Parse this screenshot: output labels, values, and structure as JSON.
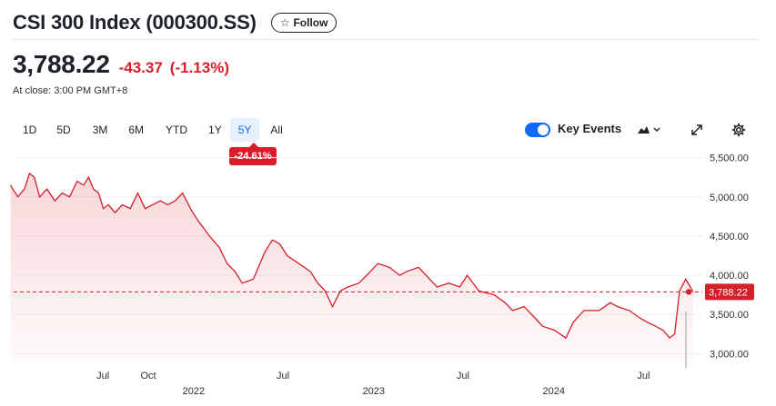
{
  "header": {
    "title": "CSI 300 Index (000300.SS)",
    "follow_label": "Follow"
  },
  "quote": {
    "price": "3,788.22",
    "change": "-43.37",
    "change_percent": "(-1.13%)",
    "close_note": "At close: 3:00 PM GMT+8"
  },
  "ranges": [
    "1D",
    "5D",
    "3M",
    "6M",
    "YTD",
    "1Y",
    "5Y",
    "All"
  ],
  "active_range": "5Y",
  "period_performance": "-24.61%",
  "toolbar": {
    "key_events_label": "Key Events",
    "key_events_enabled": true,
    "icons": [
      "mountain-chart-icon",
      "chevron-down-icon",
      "expand-icon",
      "gear-icon"
    ]
  },
  "colors": {
    "line": "#d61f2b",
    "negative": "#d61f2b",
    "accent": "#0f69ff"
  },
  "chart_data": {
    "type": "area",
    "ylim": [
      2900,
      5600
    ],
    "yticks": [
      3000,
      3500,
      4000,
      4500,
      5000,
      5500
    ],
    "ytick_labels": [
      "3,000.00",
      "3,500.00",
      "4,000.00",
      "4,500.00",
      "5,000.00",
      "5,500.00"
    ],
    "xticks": [
      {
        "label": "Jul",
        "date": "2021-07"
      },
      {
        "label": "Oct",
        "date": "2021-10"
      },
      {
        "label": "2022",
        "date": "2022-01"
      },
      {
        "label": "Jul",
        "date": "2022-07"
      },
      {
        "label": "2023",
        "date": "2023-01"
      },
      {
        "label": "Jul",
        "date": "2023-07"
      },
      {
        "label": "2024",
        "date": "2024-01"
      },
      {
        "label": "Jul",
        "date": "2024-07"
      }
    ],
    "last_price": 3788.22,
    "last_price_label": "3,788.22",
    "series": [
      {
        "values": [
          [
            "2021-01",
            5150
          ],
          [
            "2021-01",
            5000
          ],
          [
            "2021-02",
            5100
          ],
          [
            "2021-02",
            5300
          ],
          [
            "2021-02",
            5250
          ],
          [
            "2021-03",
            5000
          ],
          [
            "2021-03",
            5100
          ],
          [
            "2021-04",
            4950
          ],
          [
            "2021-04",
            5050
          ],
          [
            "2021-05",
            5000
          ],
          [
            "2021-05",
            5200
          ],
          [
            "2021-06",
            5150
          ],
          [
            "2021-06",
            5250
          ],
          [
            "2021-06",
            5100
          ],
          [
            "2021-07",
            5050
          ],
          [
            "2021-07",
            4850
          ],
          [
            "2021-07",
            4900
          ],
          [
            "2021-08",
            4800
          ],
          [
            "2021-08",
            4900
          ],
          [
            "2021-09",
            4850
          ],
          [
            "2021-09",
            5050
          ],
          [
            "2021-10",
            4850
          ],
          [
            "2021-10",
            4900
          ],
          [
            "2021-11",
            4950
          ],
          [
            "2021-11",
            4900
          ],
          [
            "2021-12",
            4950
          ],
          [
            "2021-12",
            5050
          ],
          [
            "2022-01",
            4850
          ],
          [
            "2022-01",
            4700
          ],
          [
            "2022-02",
            4500
          ],
          [
            "2022-03",
            4350
          ],
          [
            "2022-03",
            4150
          ],
          [
            "2022-04",
            4050
          ],
          [
            "2022-04",
            3900
          ],
          [
            "2022-05",
            3950
          ],
          [
            "2022-06",
            4300
          ],
          [
            "2022-06",
            4450
          ],
          [
            "2022-07",
            4400
          ],
          [
            "2022-07",
            4250
          ],
          [
            "2022-08",
            4150
          ],
          [
            "2022-09",
            4050
          ],
          [
            "2022-09",
            3900
          ],
          [
            "2022-10",
            3800
          ],
          [
            "2022-10",
            3600
          ],
          [
            "2022-11",
            3800
          ],
          [
            "2022-11",
            3850
          ],
          [
            "2022-12",
            3900
          ],
          [
            "2023-01",
            4050
          ],
          [
            "2023-01",
            4150
          ],
          [
            "2023-02",
            4100
          ],
          [
            "2023-03",
            4000
          ],
          [
            "2023-03",
            4050
          ],
          [
            "2023-04",
            4100
          ],
          [
            "2023-05",
            3950
          ],
          [
            "2023-05",
            3850
          ],
          [
            "2023-06",
            3900
          ],
          [
            "2023-07",
            3850
          ],
          [
            "2023-07",
            4000
          ],
          [
            "2023-08",
            3800
          ],
          [
            "2023-09",
            3750
          ],
          [
            "2023-10",
            3650
          ],
          [
            "2023-10",
            3550
          ],
          [
            "2023-11",
            3600
          ],
          [
            "2023-12",
            3450
          ],
          [
            "2023-12",
            3350
          ],
          [
            "2024-01",
            3300
          ],
          [
            "2024-02",
            3200
          ],
          [
            "2024-02",
            3400
          ],
          [
            "2024-03",
            3550
          ],
          [
            "2024-04",
            3550
          ],
          [
            "2024-05",
            3650
          ],
          [
            "2024-05",
            3600
          ],
          [
            "2024-06",
            3550
          ],
          [
            "2024-07",
            3450
          ],
          [
            "2024-07",
            3400
          ],
          [
            "2024-08",
            3350
          ],
          [
            "2024-08",
            3300
          ],
          [
            "2024-09",
            3200
          ],
          [
            "2024-09",
            3250
          ],
          [
            "2024-09",
            3800
          ],
          [
            "2024-10",
            3950
          ],
          [
            "2024-10",
            3788.22
          ]
        ]
      }
    ]
  }
}
